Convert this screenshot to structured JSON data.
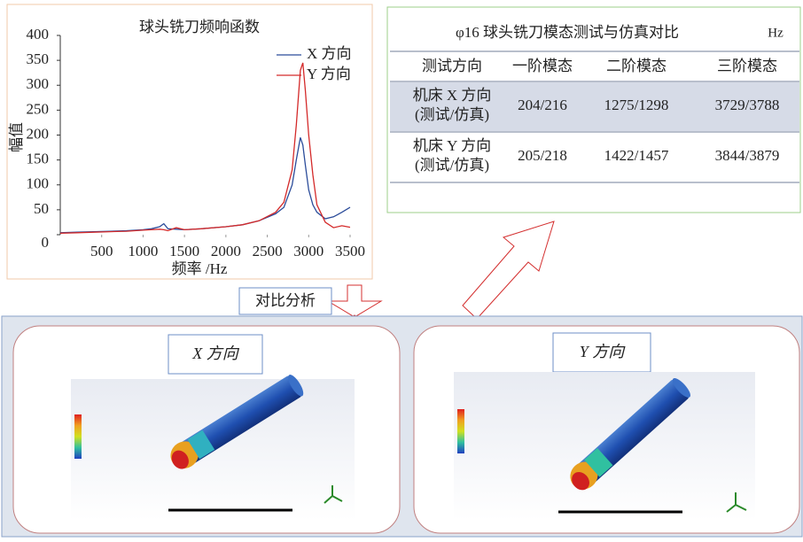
{
  "chart_data": {
    "type": "line",
    "title": "球头铣刀频响函数",
    "x_label": "频率 /Hz",
    "y_label": "幅值",
    "x": [
      0,
      200,
      400,
      600,
      800,
      1000,
      1100,
      1200,
      1250,
      1300,
      1400,
      1500,
      1700,
      2000,
      2200,
      2400,
      2600,
      2700,
      2800,
      2850,
      2900,
      2930,
      2960,
      3000,
      3050,
      3100,
      3200,
      3300,
      3400,
      3500
    ],
    "series": [
      {
        "name": "X 方向",
        "color": "#2b4c9a",
        "values": [
          4,
          5,
          6,
          7,
          8,
          10,
          12,
          16,
          22,
          12,
          11,
          10,
          12,
          16,
          20,
          28,
          42,
          55,
          100,
          150,
          195,
          180,
          140,
          90,
          60,
          45,
          32,
          36,
          45,
          55
        ]
      },
      {
        "name": "Y 方向",
        "color": "#d42a2a",
        "values": [
          3,
          4,
          5,
          6,
          7,
          9,
          10,
          11,
          10,
          8,
          14,
          10,
          12,
          16,
          20,
          28,
          45,
          65,
          130,
          220,
          330,
          345,
          290,
          200,
          120,
          60,
          25,
          14,
          18,
          15
        ]
      }
    ],
    "xlim": [
      0,
      3500
    ],
    "xticks": [
      500,
      1000,
      1500,
      2000,
      2500,
      3000,
      3500
    ],
    "ylim": [
      0,
      400
    ],
    "yticks": [
      0,
      50,
      100,
      150,
      200,
      250,
      300,
      350,
      400
    ],
    "grid": false,
    "legend": "upper right"
  },
  "table": {
    "title": "φ16 球头铣刀模态测试与仿真对比",
    "unit": "Hz",
    "header": [
      "测试方向",
      "一阶模态",
      "二阶模态",
      "三阶模态"
    ],
    "rows": [
      {
        "label": [
          "机床 X 方向",
          "(测试/仿真)"
        ],
        "cells": [
          "204/216",
          "1275/1298",
          "3729/3788"
        ]
      },
      {
        "label": [
          "机床 Y 方向",
          "(测试/仿真)"
        ],
        "cells": [
          "205/218",
          "1422/1457",
          "3844/3879"
        ]
      }
    ]
  },
  "compare_label": "对比分析",
  "panels": [
    {
      "title": "X 方向"
    },
    {
      "title": "Y 方向"
    }
  ]
}
